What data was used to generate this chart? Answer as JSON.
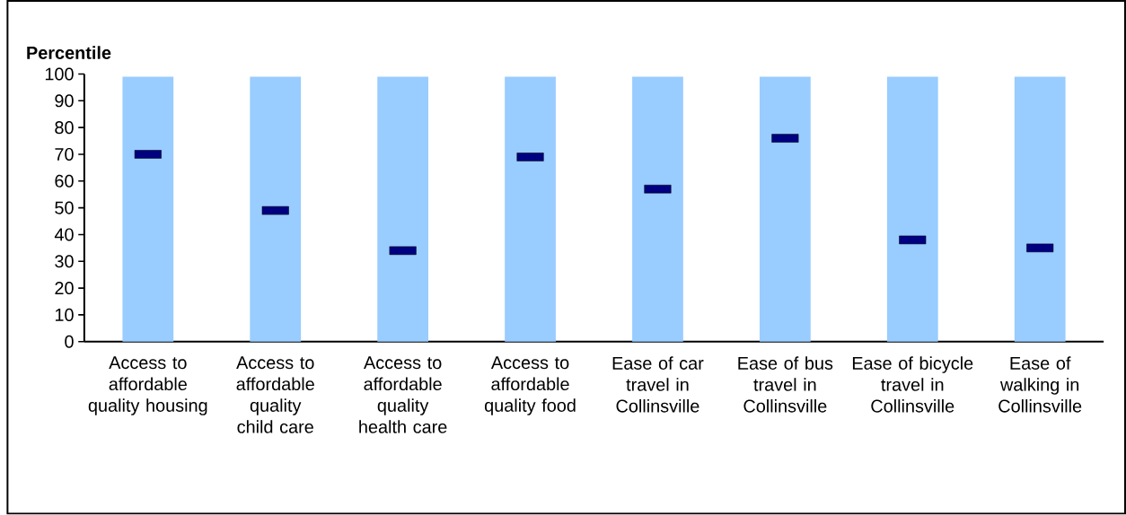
{
  "chart_data": {
    "type": "bar",
    "ylabel": "Percentile",
    "categories": [
      "Access to affordable quality housing",
      "Access to affordable quality child care",
      "Access to affordable quality health care",
      "Access to affordable quality food",
      "Ease of car travel in Collinsville",
      "Ease of bus travel in Collinsville",
      "Ease of bicycle travel in Collinsville",
      "Ease of walking in Collinsville"
    ],
    "series": [
      {
        "type": "bar",
        "color": "#99ccff",
        "values": [
          99,
          99,
          99,
          99,
          99,
          99,
          99,
          99
        ]
      },
      {
        "type": "scatter",
        "color": "#000080",
        "values": [
          70,
          49,
          34,
          69,
          57,
          76,
          38,
          35
        ]
      }
    ],
    "ylim": [
      0,
      100
    ],
    "yticks": [
      0,
      10,
      20,
      30,
      40,
      50,
      60,
      70,
      80,
      90,
      100
    ]
  }
}
